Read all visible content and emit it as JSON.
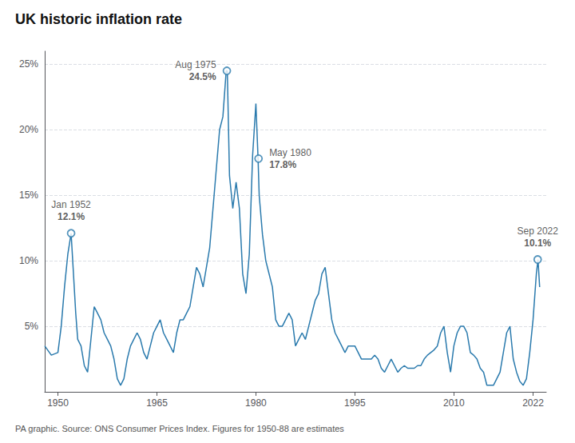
{
  "chart_data": {
    "type": "line",
    "title": "UK historic inflation rate",
    "footnote": "PA graphic. Source: ONS Consumer Prices Index. Figures for 1950-88 are estimates",
    "color": "#2a7aad",
    "grid": true,
    "xlim": [
      1948,
      2024
    ],
    "xticks": [
      1950,
      1965,
      1980,
      1995,
      2010,
      2022
    ],
    "ylim": [
      0,
      26
    ],
    "yticks": [
      {
        "value": 5,
        "label": "5%"
      },
      {
        "value": 10,
        "label": "10%"
      },
      {
        "value": 15,
        "label": "15%"
      },
      {
        "value": 20,
        "label": "20%"
      },
      {
        "value": 25,
        "label": "25%"
      }
    ],
    "annotations": [
      {
        "x": 1952.0,
        "y": 12.1,
        "label": "Jan 1952",
        "value_label": "12.1%"
      },
      {
        "x": 1975.6,
        "y": 24.5,
        "label": "Aug 1975",
        "value_label": "24.5%"
      },
      {
        "x": 1980.4,
        "y": 17.8,
        "label": "May 1980",
        "value_label": "17.8%"
      },
      {
        "x": 2022.7,
        "y": 10.1,
        "label": "Sep 2022",
        "value_label": "10.1%"
      }
    ],
    "x": [
      1948.0,
      1949.0,
      1950.0,
      1950.5,
      1951.0,
      1951.5,
      1952.0,
      1952.3,
      1952.7,
      1953.0,
      1953.5,
      1954.0,
      1954.5,
      1955.0,
      1955.5,
      1956.0,
      1956.5,
      1957.0,
      1957.5,
      1958.0,
      1958.5,
      1959.0,
      1959.5,
      1960.0,
      1960.5,
      1961.0,
      1961.5,
      1962.0,
      1962.5,
      1963.0,
      1963.5,
      1964.0,
      1964.5,
      1965.0,
      1965.5,
      1966.0,
      1966.5,
      1967.0,
      1967.5,
      1968.0,
      1968.5,
      1969.0,
      1969.5,
      1970.0,
      1970.5,
      1971.0,
      1971.5,
      1972.0,
      1972.5,
      1973.0,
      1973.5,
      1974.0,
      1974.5,
      1975.0,
      1975.5,
      1975.67,
      1976.0,
      1976.5,
      1977.0,
      1977.5,
      1978.0,
      1978.5,
      1979.0,
      1979.5,
      1980.0,
      1980.33,
      1980.5,
      1981.0,
      1981.5,
      1982.0,
      1982.5,
      1983.0,
      1983.5,
      1984.0,
      1984.5,
      1985.0,
      1985.5,
      1986.0,
      1986.5,
      1987.0,
      1987.5,
      1988.0,
      1988.5,
      1989.0,
      1989.5,
      1990.0,
      1990.5,
      1991.0,
      1991.5,
      1992.0,
      1992.5,
      1993.0,
      1993.5,
      1994.0,
      1994.5,
      1995.0,
      1995.5,
      1996.0,
      1996.5,
      1997.0,
      1997.5,
      1998.0,
      1998.5,
      1999.0,
      1999.5,
      2000.0,
      2000.5,
      2001.0,
      2001.5,
      2002.0,
      2002.5,
      2003.0,
      2003.5,
      2004.0,
      2004.5,
      2005.0,
      2005.5,
      2006.0,
      2006.5,
      2007.0,
      2007.5,
      2008.0,
      2008.5,
      2009.0,
      2009.5,
      2010.0,
      2010.5,
      2011.0,
      2011.5,
      2012.0,
      2012.5,
      2013.0,
      2013.5,
      2014.0,
      2014.5,
      2015.0,
      2015.5,
      2016.0,
      2016.5,
      2017.0,
      2017.5,
      2018.0,
      2018.5,
      2019.0,
      2019.5,
      2020.0,
      2020.5,
      2021.0,
      2021.5,
      2022.0,
      2022.5,
      2022.75,
      2023.0
    ],
    "values": [
      3.5,
      2.8,
      3.0,
      5.0,
      8.0,
      10.5,
      12.1,
      9.5,
      6.0,
      4.0,
      3.5,
      2.0,
      1.5,
      4.0,
      6.5,
      6.0,
      5.5,
      4.5,
      4.0,
      3.5,
      2.5,
      1.0,
      0.5,
      1.0,
      2.5,
      3.5,
      4.0,
      4.5,
      4.0,
      3.0,
      2.5,
      3.5,
      4.5,
      5.0,
      5.5,
      4.5,
      4.0,
      3.5,
      3.0,
      4.5,
      5.5,
      5.5,
      6.0,
      6.5,
      8.0,
      9.5,
      9.0,
      8.0,
      9.5,
      11.0,
      14.0,
      17.0,
      20.0,
      21.0,
      24.5,
      24.5,
      16.5,
      14.0,
      16.0,
      14.0,
      9.0,
      7.5,
      10.5,
      18.0,
      22.0,
      17.8,
      15.0,
      12.0,
      10.0,
      9.0,
      8.0,
      5.5,
      5.0,
      5.0,
      5.5,
      6.0,
      5.5,
      3.5,
      4.0,
      4.5,
      4.0,
      5.0,
      6.0,
      7.0,
      7.5,
      9.0,
      9.5,
      7.5,
      5.5,
      4.5,
      4.0,
      3.5,
      3.0,
      3.5,
      3.5,
      3.5,
      3.0,
      2.5,
      2.5,
      2.5,
      2.5,
      2.8,
      2.5,
      1.8,
      1.5,
      2.0,
      2.5,
      2.0,
      1.5,
      1.8,
      2.0,
      1.8,
      1.8,
      1.8,
      2.0,
      2.0,
      2.5,
      2.8,
      3.0,
      3.2,
      3.5,
      4.5,
      5.0,
      3.0,
      1.5,
      3.5,
      4.5,
      5.0,
      5.0,
      4.5,
      3.0,
      2.8,
      2.5,
      1.8,
      1.5,
      0.5,
      0.5,
      0.5,
      1.0,
      1.5,
      3.0,
      4.5,
      5.0,
      2.5,
      1.5,
      0.8,
      0.5,
      1.0,
      3.0,
      5.5,
      9.0,
      10.1,
      8.0
    ]
  }
}
